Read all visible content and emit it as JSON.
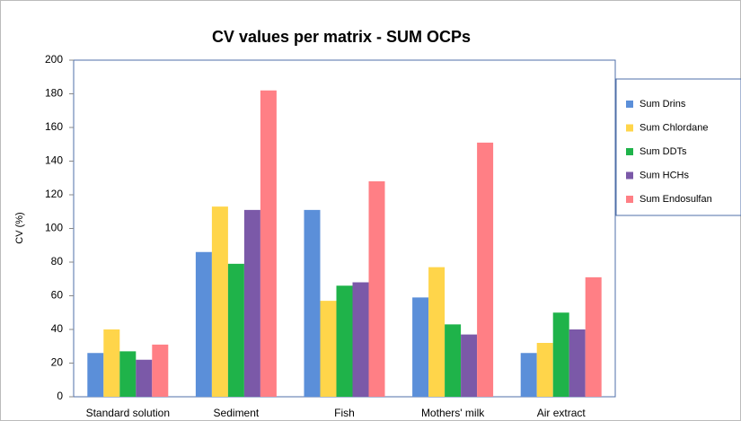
{
  "chart_data": {
    "type": "bar",
    "title": "CV values per matrix - SUM OCPs",
    "y_label": "CV (%)",
    "categories": [
      "Standard solution",
      "Sediment",
      "Fish",
      "Mothers' milk",
      "Air extract"
    ],
    "series": [
      {
        "name": "Sum Drins",
        "color": "#5b8fd9",
        "values": [
          26,
          86,
          111,
          59,
          26
        ]
      },
      {
        "name": "Sum Chlordane",
        "color": "#ffd54a",
        "values": [
          40,
          113,
          57,
          77,
          32
        ]
      },
      {
        "name": "Sum DDTs",
        "color": "#1fb34a",
        "values": [
          27,
          79,
          66,
          43,
          50
        ]
      },
      {
        "name": "Sum HCHs",
        "color": "#7b59a8",
        "values": [
          22,
          111,
          68,
          37,
          40
        ]
      },
      {
        "name": "Sum Endosulfan",
        "color": "#ff7f85",
        "values": [
          31,
          182,
          128,
          151,
          71
        ]
      }
    ],
    "ylim": [
      0,
      200
    ],
    "yticks": [
      0,
      20,
      40,
      60,
      80,
      100,
      120,
      140,
      160,
      180,
      200
    ],
    "grid": false,
    "legend": "right"
  }
}
